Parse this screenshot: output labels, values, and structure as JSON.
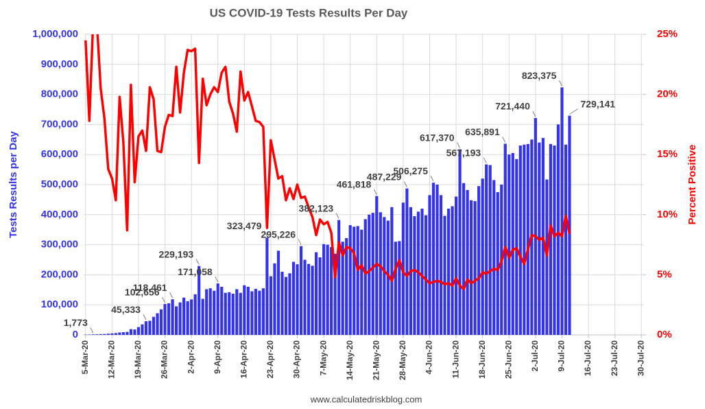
{
  "chart_data": {
    "type": "combo",
    "title": "US COVID-19 Tests Results Per Day",
    "y_label": "Tests Results per Day",
    "y2_label": "Percent Positive",
    "source": "www.calculatedriskblog.com",
    "grid": true,
    "categories": [
      "5-Mar-20",
      null,
      null,
      null,
      null,
      null,
      null,
      "12-Mar-20",
      null,
      null,
      null,
      null,
      null,
      null,
      "19-Mar-20",
      null,
      null,
      null,
      null,
      null,
      null,
      "26-Mar-20",
      null,
      null,
      null,
      null,
      null,
      null,
      "2-Apr-20",
      null,
      null,
      null,
      null,
      null,
      null,
      "9-Apr-20",
      null,
      null,
      null,
      null,
      null,
      null,
      "16-Apr-20",
      null,
      null,
      null,
      null,
      null,
      null,
      "23-Apr-20",
      null,
      null,
      null,
      null,
      null,
      null,
      "30-Apr-20",
      null,
      null,
      null,
      null,
      null,
      null,
      "7-May-20",
      null,
      null,
      null,
      null,
      null,
      null,
      "14-May-20",
      null,
      null,
      null,
      null,
      null,
      null,
      "21-May-20",
      null,
      null,
      null,
      null,
      null,
      null,
      "28-May-20",
      null,
      null,
      null,
      null,
      null,
      null,
      "4-Jun-20",
      null,
      null,
      null,
      null,
      null,
      null,
      "11-Jun-20",
      null,
      null,
      null,
      null,
      null,
      null,
      "18-Jun-20",
      null,
      null,
      null,
      null,
      null,
      null,
      "25-Jun-20",
      null,
      null,
      null,
      null,
      null,
      null,
      "2-Jul-20",
      null,
      null,
      null,
      null,
      null,
      null,
      "9-Jul-20",
      null,
      null,
      null,
      null,
      null,
      null,
      "16-Jul-20",
      null,
      null,
      null,
      null,
      null,
      null,
      "23-Jul-20",
      null,
      null,
      null,
      null,
      null,
      null,
      "30-Jul-20"
    ],
    "ylim": [
      0,
      1000000
    ],
    "yticks": [
      0,
      {
        "value": 100000,
        "label": "100,000"
      },
      {
        "value": 200000,
        "label": "200,000"
      },
      {
        "value": 300000,
        "label": "300,000"
      },
      {
        "value": 400000,
        "label": "400,000"
      },
      {
        "value": 500000,
        "label": "500,000"
      },
      {
        "value": 600000,
        "label": "600,000"
      },
      {
        "value": 700000,
        "label": "700,000"
      },
      {
        "value": 800000,
        "label": "800,000"
      },
      {
        "value": 900000,
        "label": "900,000"
      },
      {
        "value": 1000000,
        "label": "1,000,000"
      }
    ],
    "y2lim": [
      0,
      25
    ],
    "y2ticks": [
      {
        "value": 0,
        "label": "0%"
      },
      {
        "value": 5,
        "label": "5%"
      },
      {
        "value": 10,
        "label": "10%"
      },
      {
        "value": 15,
        "label": "15%"
      },
      {
        "value": 20,
        "label": "20%"
      },
      {
        "value": 25,
        "label": "25%"
      }
    ],
    "series": [
      {
        "type": "bar",
        "color": "#3333ee",
        "values": [
          1000,
          1200,
          1773,
          2000,
          2500,
          3000,
          4000,
          5000,
          6000,
          8000,
          9000,
          10000,
          19000,
          18000,
          26000,
          35000,
          45333,
          47000,
          60000,
          72000,
          85000,
          102656,
          105000,
          118461,
          95000,
          108000,
          124000,
          112000,
          118000,
          135000,
          229193,
          120000,
          152000,
          155000,
          147000,
          171058,
          160000,
          140000,
          142000,
          137000,
          152000,
          140000,
          165000,
          160000,
          145000,
          153000,
          147000,
          155000,
          323479,
          195000,
          238000,
          280000,
          210000,
          193000,
          205000,
          243000,
          235000,
          295226,
          250000,
          236000,
          230000,
          275000,
          258000,
          302000,
          300000,
          292000,
          270000,
          382123,
          310000,
          322000,
          365000,
          360000,
          362000,
          350000,
          385000,
          400000,
          406000,
          461818,
          408000,
          392000,
          380000,
          425000,
          310000,
          312000,
          440000,
          487229,
          425000,
          395000,
          410000,
          420000,
          398000,
          465000,
          506275,
          500000,
          465000,
          396000,
          420000,
          428000,
          460000,
          617370,
          505000,
          482000,
          448000,
          445000,
          495000,
          520000,
          567193,
          565000,
          515000,
          475000,
          500000,
          635891,
          600000,
          605000,
          585000,
          630000,
          633000,
          635000,
          650000,
          721440,
          640000,
          655000,
          517000,
          635000,
          630000,
          700000,
          823375,
          633000,
          729141,
          null,
          null,
          null,
          null,
          null,
          null,
          null,
          null,
          null,
          null,
          null,
          null,
          null,
          null,
          null,
          null,
          null,
          null,
          null
        ],
        "value_labels": [
          null,
          null,
          "1,773",
          null,
          null,
          null,
          null,
          null,
          null,
          null,
          null,
          null,
          null,
          null,
          null,
          null,
          "45,333",
          null,
          null,
          null,
          null,
          "102,656",
          null,
          "118,461",
          null,
          null,
          null,
          null,
          null,
          null,
          "229,193",
          null,
          null,
          null,
          null,
          "171,058",
          null,
          null,
          null,
          null,
          null,
          null,
          null,
          null,
          null,
          null,
          null,
          null,
          "323,479",
          null,
          null,
          null,
          null,
          null,
          null,
          null,
          null,
          "295,226",
          null,
          null,
          null,
          null,
          null,
          null,
          null,
          null,
          null,
          "382,123",
          null,
          null,
          null,
          null,
          null,
          null,
          null,
          null,
          null,
          "461,818",
          null,
          null,
          null,
          null,
          null,
          null,
          null,
          "487,229",
          null,
          null,
          null,
          null,
          null,
          null,
          "506,275",
          null,
          null,
          null,
          null,
          null,
          null,
          "617,370",
          null,
          null,
          null,
          null,
          null,
          null,
          "567,193",
          null,
          null,
          null,
          null,
          "635,891",
          null,
          null,
          null,
          null,
          null,
          null,
          null,
          "721,440",
          null,
          null,
          null,
          null,
          null,
          null,
          "823,375",
          null,
          "729,141",
          null,
          null,
          null,
          null,
          null,
          null,
          null,
          null,
          null,
          null,
          null,
          null,
          null,
          null,
          null,
          null,
          null,
          null,
          null
        ]
      },
      {
        "type": "line",
        "axis": "y2",
        "color": "#ff0000",
        "values": [
          24.5,
          17.8,
          26,
          26,
          20.5,
          18,
          13.8,
          13,
          11.2,
          19.8,
          16,
          8.7,
          20.8,
          12.7,
          16.5,
          17,
          15.3,
          20.6,
          19.6,
          15.3,
          15.2,
          17.3,
          18.3,
          18.2,
          22.3,
          18.5,
          21.8,
          23.7,
          23.6,
          23.8,
          14.3,
          21.3,
          19.1,
          20,
          20.6,
          20.2,
          21.8,
          22.3,
          19.4,
          18.4,
          16.9,
          21.9,
          19.5,
          20.2,
          19,
          17.8,
          17.7,
          17.3,
          8.9,
          16.2,
          14.6,
          13,
          13.2,
          11.2,
          12.2,
          11.3,
          12.5,
          11.4,
          11.5,
          10.6,
          9.8,
          8.3,
          9.6,
          9.2,
          9.4,
          8.5,
          4.8,
          7.7,
          6.6,
          7.3,
          7.2,
          6.8,
          5.4,
          5.8,
          5.1,
          5.3,
          5.6,
          5.9,
          5.7,
          5.3,
          5,
          4.5,
          5.5,
          6.2,
          5.2,
          4.9,
          5.3,
          5.4,
          5.2,
          4.9,
          4.6,
          4.3,
          4.4,
          4.5,
          4.4,
          4.2,
          4.3,
          4.1,
          4.7,
          4.1,
          3.8,
          4.6,
          4.3,
          4.5,
          4.7,
          5.2,
          5.1,
          5.3,
          5.5,
          5.4,
          6.1,
          7.3,
          6.4,
          7.1,
          7.2,
          6.5,
          5.9,
          7.1,
          8.3,
          8.2,
          7.9,
          8.1,
          6.6,
          9.1,
          8.2,
          8.5,
          8.2,
          9.9,
          8.4,
          null,
          null,
          null,
          null,
          null,
          null,
          null,
          null,
          null,
          null,
          null,
          null,
          null,
          null,
          null,
          null,
          null,
          null,
          null
        ]
      }
    ]
  }
}
